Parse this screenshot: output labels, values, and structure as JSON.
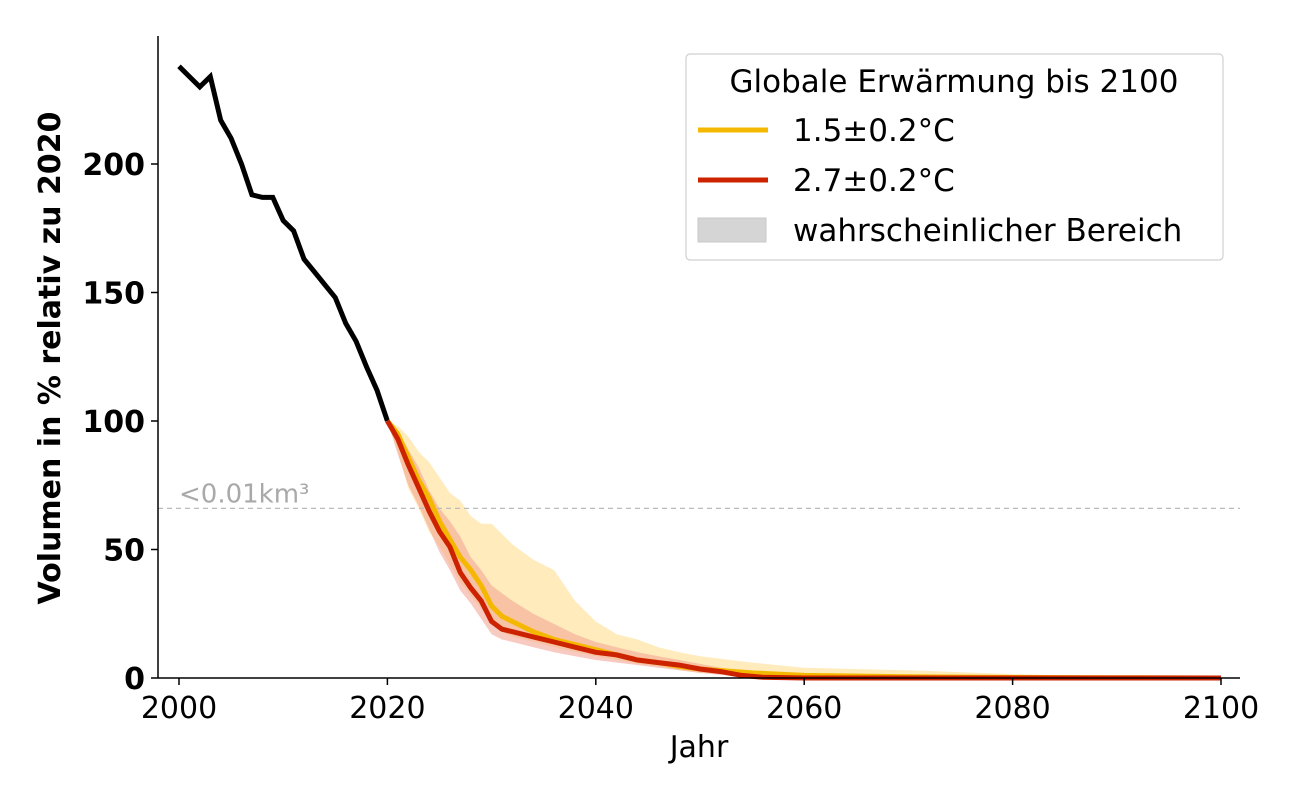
{
  "chart_data": {
    "type": "line",
    "xlabel": "Jahr",
    "ylabel": "Volumen in % relativ zu 2020",
    "xlim": [
      1998,
      2102
    ],
    "ylim": [
      0,
      250
    ],
    "xticks": [
      2000,
      2020,
      2040,
      2060,
      2080,
      2100
    ],
    "yticks": [
      0,
      50,
      100,
      150,
      200
    ],
    "grid": false,
    "legend": {
      "title": "Globale Erwärmung bis 2100",
      "placement": "top-right",
      "entries": [
        "1.5±0.2°C",
        "2.7±0.2°C",
        "wahrscheinlicher Bereich"
      ]
    },
    "annotation": {
      "text": "<0.01km³",
      "y": 66
    },
    "colors": {
      "historical": "#000000",
      "s15": "#f5b800",
      "s27": "#cc2200",
      "band15": "#ffe2a0",
      "band27": "#f3a090",
      "legend_band": "#d5d5d5",
      "threshold": "#bbbbbb"
    },
    "historical": {
      "name": "",
      "x": [
        2000,
        2001,
        2002,
        2003,
        2004,
        2005,
        2006,
        2007,
        2008,
        2009,
        2010,
        2011,
        2012,
        2013,
        2014,
        2015,
        2016,
        2017,
        2018,
        2019,
        2020
      ],
      "y": [
        238,
        234,
        230,
        234,
        217,
        210,
        200,
        188,
        187,
        187,
        178,
        174,
        163,
        158,
        153,
        148,
        138,
        131,
        121,
        112,
        100
      ]
    },
    "series": [
      {
        "name": "1.5±0.2°C",
        "x": [
          2020,
          2021,
          2022,
          2023,
          2024,
          2025,
          2026,
          2027,
          2028,
          2029,
          2030,
          2031,
          2032,
          2034,
          2036,
          2038,
          2040,
          2042,
          2044,
          2046,
          2048,
          2050,
          2055,
          2060,
          2070,
          2080,
          2090,
          2100
        ],
        "y": [
          100,
          95,
          86,
          77,
          70,
          61,
          54,
          47,
          42,
          36,
          28,
          24,
          22,
          18,
          15,
          13,
          11,
          9,
          7,
          6,
          4.5,
          3.5,
          2,
          1,
          0.5,
          0.2,
          0.1,
          0
        ],
        "low": [
          100,
          88,
          74,
          66,
          57,
          51,
          44,
          37,
          32,
          27,
          21,
          18,
          16,
          14,
          12,
          10,
          8.5,
          7,
          5.5,
          4.5,
          3,
          2,
          0.8,
          0.2,
          0,
          0,
          0,
          0
        ],
        "high": [
          100,
          98,
          94,
          88,
          84,
          78,
          72,
          69,
          63,
          60,
          60,
          56,
          52,
          46,
          42,
          30,
          22,
          17,
          15,
          12,
          10,
          8.5,
          6,
          4,
          3,
          1.5,
          0.5,
          0
        ]
      },
      {
        "name": "2.7±0.2°C",
        "x": [
          2020,
          2021,
          2022,
          2023,
          2024,
          2025,
          2026,
          2027,
          2028,
          2029,
          2030,
          2031,
          2032,
          2034,
          2036,
          2038,
          2040,
          2042,
          2044,
          2046,
          2048,
          2050,
          2052,
          2054,
          2056,
          2060,
          2070,
          2080,
          2090,
          2100
        ],
        "y": [
          100,
          93,
          83,
          74,
          65,
          57,
          51,
          41,
          35,
          30,
          22,
          19,
          18,
          16,
          14,
          12,
          10,
          9,
          7,
          6,
          5,
          3.5,
          2.5,
          1,
          0.3,
          0,
          0,
          0,
          0,
          0
        ],
        "low": [
          100,
          87,
          75,
          67,
          58,
          49,
          42,
          34,
          29,
          23,
          17,
          15,
          14,
          12,
          10,
          8.5,
          7,
          6,
          5,
          4,
          3,
          2,
          1.2,
          0.5,
          0,
          0,
          0,
          0,
          0,
          0
        ],
        "high": [
          100,
          96,
          89,
          82,
          73,
          66,
          61,
          55,
          47,
          42,
          36,
          33,
          30,
          25,
          21,
          17,
          14,
          12,
          10,
          8.5,
          7,
          5.5,
          4,
          2.5,
          1.2,
          0.5,
          0,
          0,
          0,
          0
        ]
      }
    ]
  }
}
